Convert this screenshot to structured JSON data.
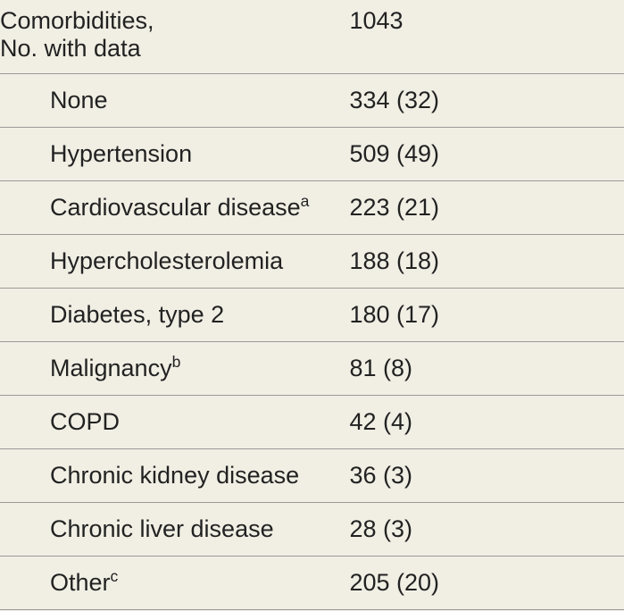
{
  "header": {
    "label_line1": "Comorbidities,",
    "label_line2": "No. with data",
    "value": "1043"
  },
  "rows": [
    {
      "label": "None",
      "sup": "",
      "value": "334 (32)"
    },
    {
      "label": "Hypertension",
      "sup": "",
      "value": "509 (49)"
    },
    {
      "label": "Cardiovascular disease",
      "sup": "a",
      "value": "223 (21)"
    },
    {
      "label": "Hypercholesterolemia",
      "sup": "",
      "value": "188 (18)"
    },
    {
      "label": "Diabetes, type 2",
      "sup": "",
      "value": "180 (17)"
    },
    {
      "label": "Malignancy",
      "sup": "b",
      "value": "81 (8)"
    },
    {
      "label": "COPD",
      "sup": "",
      "value": "42 (4)"
    },
    {
      "label": "Chronic kidney disease",
      "sup": "",
      "value": "36 (3)"
    },
    {
      "label": "Chronic liver disease",
      "sup": "",
      "value": "28 (3)"
    },
    {
      "label": "Other",
      "sup": "c",
      "value": "205 (20)"
    }
  ]
}
